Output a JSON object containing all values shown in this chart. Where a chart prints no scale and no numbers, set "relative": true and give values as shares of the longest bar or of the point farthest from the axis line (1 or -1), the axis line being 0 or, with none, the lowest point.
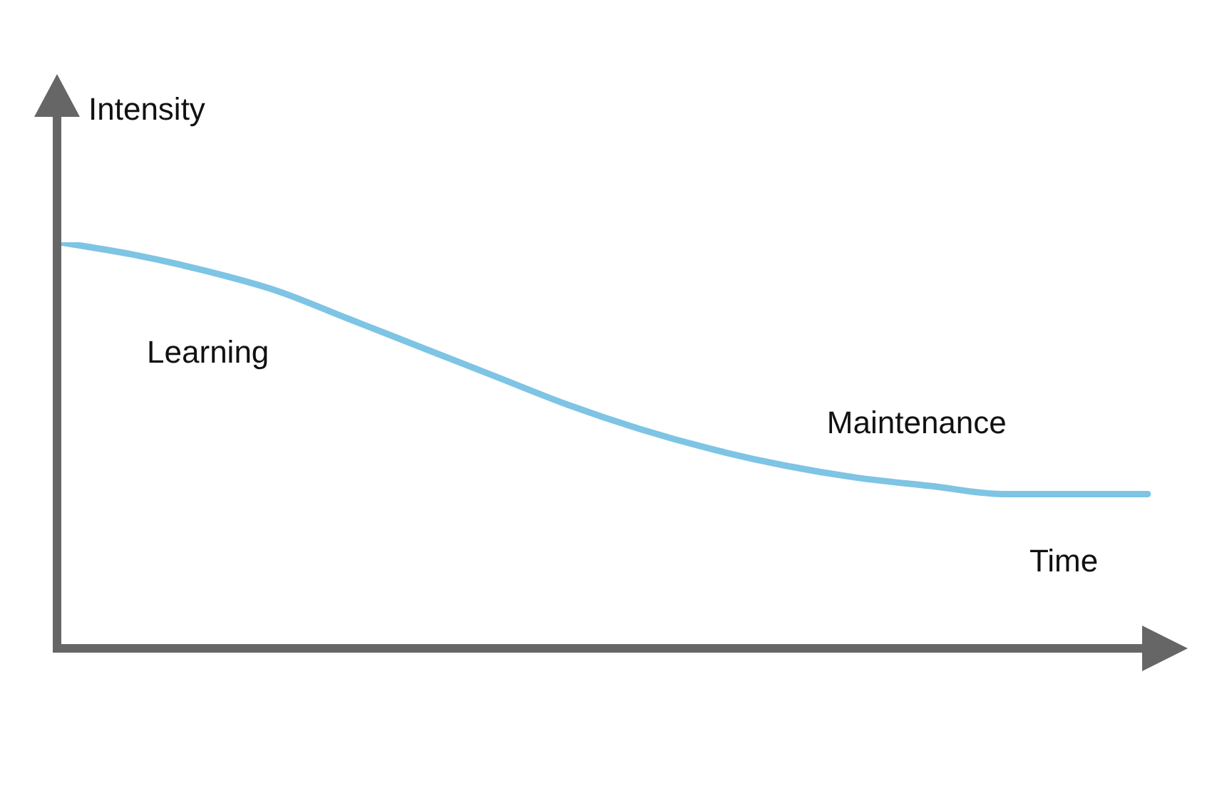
{
  "chart_data": {
    "type": "line",
    "relative": true,
    "xlabel": "Time",
    "ylabel": "Intensity",
    "annotations": [
      "Learning",
      "Maintenance"
    ],
    "marker": "none",
    "line_style": "solid",
    "categories": [
      null,
      null,
      null,
      null,
      null,
      null,
      null,
      null,
      null,
      null,
      null,
      null,
      null,
      null,
      null,
      null
    ],
    "series": [
      {
        "color": "#7ec4e4",
        "values": [
          1,
          0.97,
          0.93,
          0.88,
          0.81,
          0.74,
          0.67,
          0.6,
          0.54,
          0.49,
          0.45,
          0.42,
          0.4,
          0.38,
          0.38,
          0.38
        ]
      }
    ]
  }
}
